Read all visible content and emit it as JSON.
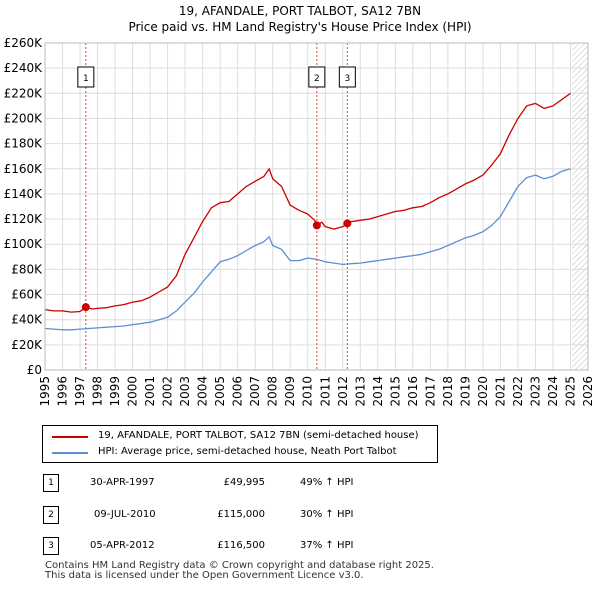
{
  "header": {
    "title": "19, AFANDALE, PORT TALBOT, SA12 7BN",
    "subtitle": "Price paid vs. HM Land Registry's House Price Index (HPI)"
  },
  "chart_data": {
    "type": "line",
    "title": "19, AFANDALE, PORT TALBOT, SA12 7BN",
    "subtitle": "Price paid vs. HM Land Registry's House Price Index (HPI)",
    "xlabel": "",
    "ylabel": "",
    "xlim": [
      1995,
      2026
    ],
    "ylim": [
      0,
      260000
    ],
    "x_ticks": [
      "1995",
      "1996",
      "1997",
      "1998",
      "1999",
      "2000",
      "2001",
      "2002",
      "2003",
      "2004",
      "2005",
      "2006",
      "2007",
      "2008",
      "2009",
      "2010",
      "2011",
      "2012",
      "2013",
      "2014",
      "2015",
      "2016",
      "2017",
      "2018",
      "2019",
      "2020",
      "2021",
      "2022",
      "2023",
      "2024",
      "2025",
      "2026"
    ],
    "y_ticks": [
      "£0",
      "£20K",
      "£40K",
      "£60K",
      "£80K",
      "£100K",
      "£120K",
      "£140K",
      "£160K",
      "£180K",
      "£200K",
      "£220K",
      "£240K",
      "£260K"
    ],
    "grid": true,
    "legend_position": "below",
    "series": [
      {
        "name": "19, AFANDALE, PORT TALBOT, SA12 7BN (semi-detached house)",
        "color": "#cc0000",
        "x": [
          1995,
          1995.5,
          1996,
          1996.5,
          1997,
          1997.33,
          1997.7,
          1998,
          1998.5,
          1999,
          1999.5,
          2000,
          2000.5,
          2001,
          2001.5,
          2002,
          2002.5,
          2003,
          2003.5,
          2004,
          2004.5,
          2005,
          2005.5,
          2006,
          2006.5,
          2007,
          2007.5,
          2007.8,
          2008,
          2008.5,
          2009,
          2009.5,
          2010,
          2010.4,
          2010.52,
          2010.8,
          2011,
          2011.5,
          2012,
          2012.26,
          2012.5,
          2013,
          2013.5,
          2014,
          2014.5,
          2015,
          2015.5,
          2016,
          2016.5,
          2017,
          2017.5,
          2018,
          2018.5,
          2019,
          2019.5,
          2020,
          2020.5,
          2021,
          2021.5,
          2022,
          2022.5,
          2023,
          2023.5,
          2024,
          2024.5,
          2025
        ],
        "values": [
          48000,
          47000,
          47000,
          46000,
          46500,
          49995,
          48500,
          49000,
          49500,
          51000,
          52000,
          54000,
          55000,
          58000,
          62000,
          66000,
          75000,
          92000,
          105000,
          118000,
          129000,
          133000,
          134000,
          140000,
          146000,
          150000,
          154000,
          160000,
          152000,
          146000,
          131000,
          127000,
          124000,
          119000,
          115000,
          117500,
          114000,
          112000,
          114000,
          116500,
          118000,
          119000,
          120000,
          122000,
          124000,
          126000,
          127000,
          129000,
          130000,
          133000,
          137000,
          140000,
          144000,
          148000,
          151000,
          155000,
          163000,
          172000,
          187000,
          200000,
          210000,
          212000,
          208000,
          210000,
          215000,
          220000
        ]
      },
      {
        "name": "HPI: Average price, semi-detached house, Neath Port Talbot",
        "color": "#5b8fd4",
        "x": [
          1995,
          1995.5,
          1996,
          1996.5,
          1997,
          1997.5,
          1998,
          1998.5,
          1999,
          1999.5,
          2000,
          2000.5,
          2001,
          2001.5,
          2002,
          2002.5,
          2003,
          2003.5,
          2004,
          2004.5,
          2005,
          2005.5,
          2006,
          2006.5,
          2007,
          2007.5,
          2007.8,
          2008,
          2008.5,
          2009,
          2009.5,
          2010,
          2010.5,
          2011,
          2011.5,
          2012,
          2012.5,
          2013,
          2013.5,
          2014,
          2014.5,
          2015,
          2015.5,
          2016,
          2016.5,
          2017,
          2017.5,
          2018,
          2018.5,
          2019,
          2019.5,
          2020,
          2020.5,
          2021,
          2021.5,
          2022,
          2022.5,
          2023,
          2023.5,
          2024,
          2024.5,
          2025
        ],
        "values": [
          33000,
          32500,
          32000,
          32000,
          32500,
          33000,
          33500,
          34000,
          34500,
          35000,
          36000,
          37000,
          38000,
          40000,
          42000,
          47000,
          54000,
          61000,
          70000,
          78000,
          86000,
          88000,
          91000,
          95000,
          99000,
          102000,
          106000,
          99000,
          96000,
          87000,
          87000,
          89000,
          88000,
          86000,
          85000,
          84000,
          84500,
          85000,
          86000,
          87000,
          88000,
          89000,
          90000,
          91000,
          92000,
          94000,
          96000,
          99000,
          102000,
          105000,
          107000,
          110000,
          115000,
          122000,
          134000,
          146000,
          153000,
          155000,
          152000,
          154000,
          158000,
          160000
        ]
      }
    ],
    "sale_markers": [
      {
        "label": "1",
        "x": 1997.33,
        "value": 49995
      },
      {
        "label": "2",
        "x": 2010.52,
        "value": 115000
      },
      {
        "label": "3",
        "x": 2012.26,
        "value": 116500
      }
    ]
  },
  "legend": {
    "items": [
      {
        "label": "19, AFANDALE, PORT TALBOT, SA12 7BN (semi-detached house)",
        "color": "#cc0000"
      },
      {
        "label": "HPI: Average price, semi-detached house, Neath Port Talbot",
        "color": "#5b8fd4"
      }
    ]
  },
  "sales": [
    {
      "num": "1",
      "date": "30-APR-1997",
      "price": "£49,995",
      "hpi": "49% ↑ HPI"
    },
    {
      "num": "2",
      "date": "09-JUL-2010",
      "price": "£115,000",
      "hpi": "30% ↑ HPI"
    },
    {
      "num": "3",
      "date": "05-APR-2012",
      "price": "£116,500",
      "hpi": "37% ↑ HPI"
    }
  ],
  "footer": {
    "line1": "Contains HM Land Registry data © Crown copyright and database right 2025.",
    "line2": "This data is licensed under the Open Government Licence v3.0."
  }
}
